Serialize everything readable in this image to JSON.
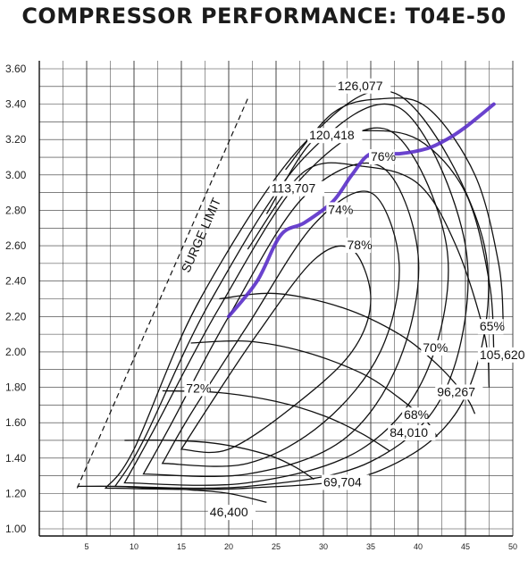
{
  "chart_data": {
    "type": "line",
    "title": "COMPRESSOR PERFORMANCE: T04E-50",
    "xlabel": "",
    "ylabel": "",
    "xlim": [
      0,
      50
    ],
    "ylim": [
      1.0,
      3.6
    ],
    "x_ticks": [
      "5",
      "10",
      "15",
      "20",
      "25",
      "30",
      "35",
      "40",
      "45",
      "50"
    ],
    "y_ticks": [
      "1.00",
      "1.20",
      "1.40",
      "1.60",
      "1.80",
      "2.00",
      "2.20",
      "2.40",
      "2.60",
      "2.80",
      "3.00",
      "3.20",
      "3.40",
      "3.60"
    ],
    "grid": true,
    "surge_limit": {
      "label": "SURGE LIMIT",
      "x": [
        4,
        22
      ],
      "y": [
        1.23,
        3.43
      ]
    },
    "speed_lines": [
      {
        "label": "46,400",
        "x": [
          4,
          8,
          12,
          16,
          20,
          24
        ],
        "y": [
          1.24,
          1.24,
          1.23,
          1.22,
          1.2,
          1.15
        ]
      },
      {
        "label": "69,704",
        "x": [
          9,
          14,
          19,
          24,
          27,
          29
        ],
        "y": [
          1.5,
          1.5,
          1.48,
          1.42,
          1.35,
          1.28
        ]
      },
      {
        "label": "84,010",
        "x": [
          13,
          19,
          25,
          30,
          34,
          37
        ],
        "y": [
          1.78,
          1.77,
          1.72,
          1.64,
          1.54,
          1.44
        ]
      },
      {
        "label": "96,267",
        "x": [
          16,
          22,
          28,
          34,
          38,
          41,
          42
        ],
        "y": [
          2.05,
          2.06,
          2.0,
          1.88,
          1.74,
          1.6,
          1.52
        ]
      },
      {
        "label": "105,620",
        "x": [
          19,
          25,
          32,
          38,
          42,
          45,
          46
        ],
        "y": [
          2.3,
          2.33,
          2.25,
          2.1,
          1.93,
          1.75,
          1.65
        ]
      },
      {
        "label": "113,707",
        "x": [
          22,
          28,
          34,
          40,
          44,
          47,
          47.5
        ],
        "y": [
          2.58,
          3.02,
          3.05,
          2.95,
          2.6,
          2.1,
          1.8
        ]
      },
      {
        "label": "120,418",
        "x": [
          24,
          29,
          34,
          40,
          45,
          47.5,
          48
        ],
        "y": [
          2.78,
          3.2,
          3.25,
          3.2,
          2.9,
          2.4,
          2.0
        ]
      },
      {
        "label": "126,077",
        "x": [
          26,
          31,
          36,
          41,
          46,
          48.5,
          49
        ],
        "y": [
          3.03,
          3.35,
          3.43,
          3.38,
          3.0,
          2.5,
          2.15
        ]
      }
    ],
    "efficiency_islands": [
      {
        "label": "78%",
        "x": [
          15,
          18,
          23,
          29,
          33,
          35,
          33,
          27,
          20,
          15
        ],
        "y": [
          1.45,
          1.7,
          2.1,
          2.52,
          2.58,
          2.3,
          2.0,
          1.7,
          1.45,
          1.45
        ]
      },
      {
        "label": "74%",
        "x": [
          13,
          16,
          22,
          29,
          35,
          38,
          36,
          30,
          22,
          13
        ],
        "y": [
          1.37,
          1.65,
          2.15,
          2.72,
          2.9,
          2.5,
          2.0,
          1.6,
          1.37,
          1.37
        ]
      },
      {
        "label": "72%",
        "x": [
          11,
          14,
          20,
          28,
          36,
          40,
          38,
          32,
          22,
          11
        ],
        "y": [
          1.31,
          1.6,
          2.2,
          2.88,
          3.05,
          2.55,
          1.95,
          1.5,
          1.31,
          1.31
        ]
      },
      {
        "label": "70%",
        "x": [
          9,
          12,
          19,
          28,
          37,
          43,
          41,
          34,
          22,
          9
        ],
        "y": [
          1.26,
          1.55,
          2.25,
          3.0,
          3.25,
          2.6,
          1.9,
          1.45,
          1.26,
          1.26
        ]
      },
      {
        "label": "68%",
        "x": [
          8,
          11,
          18,
          28,
          38,
          45,
          43,
          35,
          22,
          8
        ],
        "y": [
          1.24,
          1.5,
          2.28,
          3.1,
          3.38,
          2.6,
          1.8,
          1.38,
          1.24,
          1.24
        ]
      },
      {
        "label": "65%",
        "x": [
          7,
          10,
          17,
          28,
          38,
          47,
          45,
          36,
          22,
          7
        ],
        "y": [
          1.23,
          1.45,
          2.3,
          3.18,
          3.45,
          2.6,
          1.75,
          1.33,
          1.23,
          1.23
        ]
      }
    ],
    "highlight_line": {
      "color": "#5a2fc9",
      "x": [
        20,
        23,
        25.5,
        28,
        31,
        33,
        35,
        38,
        41,
        43,
        45,
        48
      ],
      "y": [
        2.2,
        2.4,
        2.66,
        2.73,
        2.85,
        3.0,
        3.12,
        3.12,
        3.15,
        3.2,
        3.27,
        3.4
      ]
    },
    "annotations": [
      {
        "text": "126,077",
        "x": 31.5,
        "y": 3.48
      },
      {
        "text": "120,418",
        "x": 28.5,
        "y": 3.2
      },
      {
        "text": "113,707",
        "x": 24.5,
        "y": 2.9
      },
      {
        "text": "105,620",
        "x": 46.5,
        "y": 1.96
      },
      {
        "text": "96,267",
        "x": 42.0,
        "y": 1.75
      },
      {
        "text": "84,010",
        "x": 37.0,
        "y": 1.52
      },
      {
        "text": "69,704",
        "x": 30.0,
        "y": 1.24
      },
      {
        "text": "46,400",
        "x": 18.0,
        "y": 1.07
      },
      {
        "text": "78%",
        "x": 32.5,
        "y": 2.58
      },
      {
        "text": "76%",
        "x": 35.0,
        "y": 3.08
      },
      {
        "text": "74%",
        "x": 30.5,
        "y": 2.78
      },
      {
        "text": "72%",
        "x": 15.5,
        "y": 1.77
      },
      {
        "text": "70%",
        "x": 40.5,
        "y": 2.0
      },
      {
        "text": "68%",
        "x": 38.5,
        "y": 1.62
      },
      {
        "text": "65%",
        "x": 46.5,
        "y": 2.12
      }
    ]
  }
}
